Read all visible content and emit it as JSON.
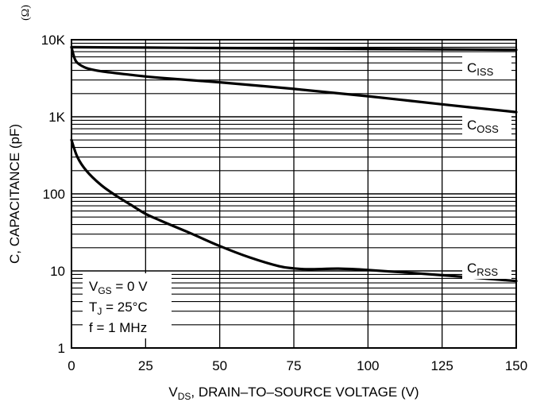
{
  "chart_data": {
    "type": "line",
    "title": "",
    "xlabel": "V",
    "xlabel_sub": "DS",
    "xlabel_rest": ", DRAIN–TO–SOURCE VOLTAGE (V)",
    "ylabel": "C, CAPACITANCE (pF)",
    "y_scale": "log",
    "xlim": [
      0,
      150
    ],
    "ylim": [
      1,
      10000
    ],
    "x_ticks": [
      0,
      25,
      50,
      75,
      100,
      125,
      150
    ],
    "x_tick_labels": [
      "0",
      "25",
      "50",
      "75",
      "100",
      "125",
      "150"
    ],
    "y_ticks": [
      1,
      10,
      100,
      1000,
      10000
    ],
    "y_tick_labels": [
      "1",
      "10",
      "100",
      "1K",
      "10K"
    ],
    "grid": true,
    "series": [
      {
        "name": "C",
        "sub": "ISS",
        "x": [
          0,
          25,
          50,
          75,
          100,
          125,
          150
        ],
        "y": [
          8000,
          7900,
          7800,
          7700,
          7600,
          7500,
          7400
        ]
      },
      {
        "name": "C",
        "sub": "OSS",
        "x": [
          0,
          1,
          2,
          5,
          10,
          20,
          30,
          50,
          75,
          100,
          125,
          150
        ],
        "y": [
          8000,
          5800,
          5000,
          4300,
          3900,
          3500,
          3200,
          2800,
          2300,
          1850,
          1450,
          1150
        ]
      },
      {
        "name": "C",
        "sub": "RSS",
        "x": [
          0,
          2,
          5,
          10,
          15,
          20,
          25,
          30,
          40,
          50,
          60,
          70,
          75,
          80,
          90,
          100,
          125,
          150
        ],
        "y": [
          500,
          300,
          200,
          130,
          95,
          72,
          55,
          45,
          31,
          21,
          15,
          11.5,
          10.8,
          10.5,
          10.7,
          10.3,
          8.8,
          7.4
        ]
      }
    ],
    "conditions": [
      {
        "pre": "V",
        "sub": "GS",
        "post": " = 0 V"
      },
      {
        "pre": "T",
        "sub": "J",
        "post": " = 25°C"
      },
      {
        "pre": "f = 1 MHz",
        "sub": "",
        "post": ""
      }
    ],
    "stray_text": "(Ω)"
  }
}
